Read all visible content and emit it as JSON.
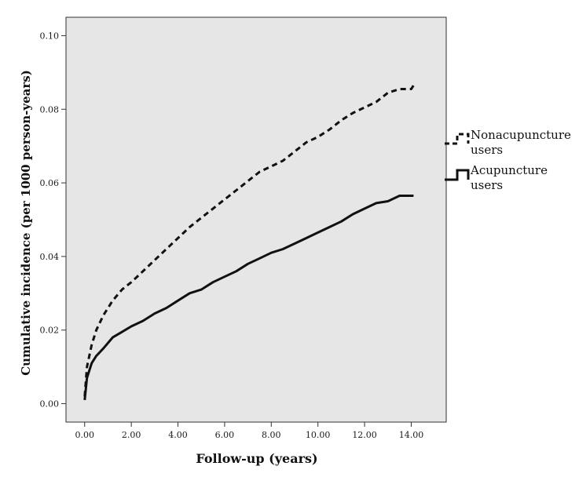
{
  "chart_data": {
    "type": "line",
    "title": "",
    "xlabel": "Follow-up (years)",
    "ylabel": "Cumulative incidence (per 1000 person-years)",
    "xlim": [
      -0.8,
      15.5
    ],
    "ylim": [
      -0.005,
      0.105
    ],
    "x_ticks": [
      0,
      2,
      4,
      6,
      8,
      10,
      12,
      14
    ],
    "x_tick_labels": [
      "0.00",
      "2.00",
      "4.00",
      "6.00",
      "8.00",
      "10.00",
      "12.00",
      "14.00"
    ],
    "y_ticks": [
      0,
      0.02,
      0.04,
      0.06,
      0.08,
      0.1
    ],
    "y_tick_labels": [
      "0.00",
      "0.02",
      "0.04",
      "0.06",
      "0.08",
      "0.10"
    ],
    "grid": false,
    "background_color": "#e6e6e6",
    "legend_position": "right",
    "series": [
      {
        "name": "Nonacupuncture users",
        "legend_lines": [
          "Nonacupuncture",
          "users"
        ],
        "line_style": "dashed",
        "color": "#111111",
        "x": [
          0,
          0.1,
          0.3,
          0.5,
          0.8,
          1.2,
          1.6,
          2,
          2.5,
          3,
          3.5,
          4,
          4.5,
          5,
          5.5,
          6,
          6.5,
          7,
          7.5,
          8,
          8.5,
          9,
          9.5,
          10,
          10.5,
          11,
          11.5,
          12,
          12.5,
          13,
          13.5,
          14,
          14.1
        ],
        "values": [
          0.002,
          0.01,
          0.016,
          0.02,
          0.024,
          0.028,
          0.031,
          0.033,
          0.036,
          0.039,
          0.042,
          0.045,
          0.048,
          0.0505,
          0.053,
          0.0555,
          0.058,
          0.0605,
          0.063,
          0.0645,
          0.066,
          0.0685,
          0.071,
          0.0725,
          0.0745,
          0.077,
          0.079,
          0.0805,
          0.082,
          0.0845,
          0.0855,
          0.0855,
          0.0865
        ]
      },
      {
        "name": "Acupuncture users",
        "legend_lines": [
          "Acupuncture",
          "users"
        ],
        "line_style": "solid",
        "color": "#111111",
        "x": [
          0,
          0.1,
          0.3,
          0.5,
          0.8,
          1.2,
          1.6,
          2,
          2.5,
          3,
          3.5,
          4,
          4.5,
          5,
          5.5,
          6,
          6.5,
          7,
          7.5,
          8,
          8.5,
          9,
          9.5,
          10,
          10.5,
          11,
          11.5,
          12,
          12.5,
          13,
          13.5,
          14,
          14.1
        ],
        "values": [
          0.001,
          0.007,
          0.011,
          0.013,
          0.015,
          0.018,
          0.0195,
          0.021,
          0.0225,
          0.0245,
          0.026,
          0.028,
          0.03,
          0.031,
          0.033,
          0.0345,
          0.036,
          0.038,
          0.0395,
          0.041,
          0.042,
          0.0435,
          0.045,
          0.0465,
          0.048,
          0.0495,
          0.0515,
          0.053,
          0.0545,
          0.055,
          0.0565,
          0.0565,
          0.0565
        ]
      }
    ]
  }
}
